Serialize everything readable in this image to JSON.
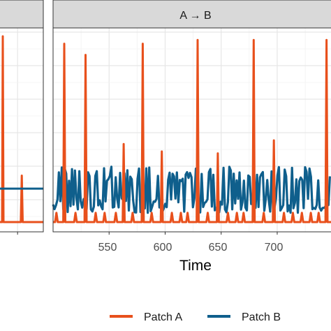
{
  "chart_data": {
    "type": "line",
    "xlabel": "Time",
    "ylabel": "",
    "title": "",
    "grid": true,
    "legend_position": "bottom",
    "colors": {
      "patch_a": "#e8501c",
      "patch_b": "#0f5f8c",
      "strip_bg": "#d9d9d9",
      "grid": "#ebebeb"
    },
    "panels": [
      {
        "label": "",
        "xlim": [
          0,
          1
        ],
        "ylim": [
          0,
          1
        ],
        "series": [
          {
            "name": "Patch A",
            "x": [
              0.0,
              0.1,
              0.12,
              0.135,
              0.15,
              0.17,
              0.5,
              0.52,
              0.54,
              0.56,
              0.58,
              1.0
            ],
            "y": [
              0.0,
              0.0,
              0.0,
              1.0,
              0.0,
              0.0,
              0.0,
              0.0,
              0.25,
              0.0,
              0.0,
              0.0
            ]
          },
          {
            "name": "Patch B",
            "x": [
              0.0,
              1.0
            ],
            "y": [
              0.18,
              0.18
            ]
          }
        ]
      },
      {
        "label": "A → B",
        "xlim": [
          500,
          748
        ],
        "ylim": [
          0,
          1
        ],
        "xticks": [
          550,
          600,
          650,
          700
        ],
        "series": [
          {
            "name": "Patch A",
            "spikes": [
              {
                "t": 510,
                "h": 0.96
              },
              {
                "t": 529,
                "h": 0.9
              },
              {
                "t": 563,
                "h": 0.42
              },
              {
                "t": 580,
                "h": 0.96
              },
              {
                "t": 597,
                "h": 0.38
              },
              {
                "t": 629,
                "h": 0.98
              },
              {
                "t": 647,
                "h": 0.37
              },
              {
                "t": 679,
                "h": 0.98
              },
              {
                "t": 697,
                "h": 0.44
              },
              {
                "t": 744,
                "h": 0.98
              }
            ],
            "small_pulses": [
              503,
              520,
              538,
              546,
              556,
              571,
              588,
              606,
              614,
              620,
              638,
              656,
              664,
              670,
              688,
              706,
              714,
              722,
              730,
              737
            ]
          },
          {
            "name": "Patch B",
            "baseline": 0.17,
            "band_low": 0.05,
            "band_high": 0.3
          }
        ]
      }
    ],
    "legend": [
      "Patch A",
      "Patch B"
    ]
  },
  "ui": {
    "strip_label": "A → B",
    "xlabel": "Time",
    "tick_550": "550",
    "tick_600": "600",
    "tick_650": "650",
    "tick_700": "700",
    "legend_a": "Patch A",
    "legend_b": "Patch B"
  }
}
